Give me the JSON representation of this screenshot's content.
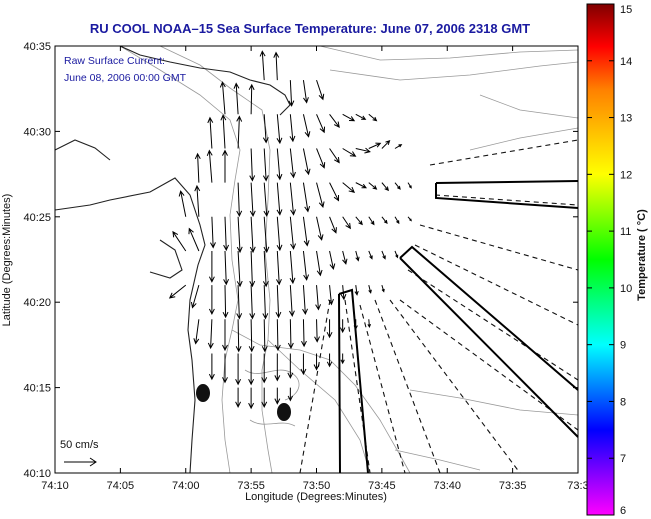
{
  "chart_data": {
    "type": "vector_field",
    "title": "RU COOL  NOAA–15  Sea Surface Temperature:  June 07, 2006 2318 GMT",
    "annotation_lines": [
      "Raw Surface Current:",
      "June 08, 2006 00:00 GMT"
    ],
    "xlabel": "Longitude (Degrees:Minutes)",
    "ylabel": "Latitude (Degrees:Minutes)",
    "xlim": [
      -74.1667,
      -73.5
    ],
    "ylim": [
      40.1667,
      40.5833
    ],
    "x_ticks": [
      "74:10",
      "74:05",
      "74:00",
      "73:55",
      "73:50",
      "73:45",
      "73:40",
      "73:35",
      "73:3"
    ],
    "y_ticks": [
      "40:35",
      "40:30",
      "40:25",
      "40:20",
      "40:15",
      "40:10"
    ],
    "scale_label": "50 cm/s",
    "colorbar": {
      "label": "Temperature ( °C)",
      "min": 6,
      "max": 15,
      "ticks": [
        "15",
        "14",
        "13",
        "12",
        "11",
        "10",
        "9",
        "8",
        "7",
        "6"
      ],
      "colors": [
        "#ff00ff",
        "#8000ff",
        "#0000ff",
        "#0080ff",
        "#00ffff",
        "#00ff80",
        "#00ff00",
        "#80ff00",
        "#ffff00",
        "#ffc000",
        "#ff8000",
        "#ff0000",
        "#800000"
      ]
    },
    "vectors": [
      {
        "lon": -73.9,
        "lat": 40.55,
        "u": -3,
        "v": 45
      },
      {
        "lon": -73.8833,
        "lat": 40.55,
        "u": -2,
        "v": 43
      },
      {
        "lon": -73.8667,
        "lat": 40.55,
        "u": 2,
        "v": -40
      },
      {
        "lon": -73.85,
        "lat": 40.55,
        "u": 5,
        "v": -35
      },
      {
        "lon": -73.8333,
        "lat": 40.55,
        "u": 10,
        "v": -30
      },
      {
        "lon": -73.95,
        "lat": 40.5167,
        "u": -4,
        "v": 50
      },
      {
        "lon": -73.9333,
        "lat": 40.5167,
        "u": -3,
        "v": 48
      },
      {
        "lon": -73.9167,
        "lat": 40.5167,
        "u": 1,
        "v": 46
      },
      {
        "lon": -73.9,
        "lat": 40.5167,
        "u": 3,
        "v": -44
      },
      {
        "lon": -73.8833,
        "lat": 40.5167,
        "u": 4,
        "v": -45
      },
      {
        "lon": -73.8667,
        "lat": 40.5167,
        "u": 4,
        "v": -42
      },
      {
        "lon": -73.85,
        "lat": 40.5167,
        "u": 8,
        "v": -35
      },
      {
        "lon": -73.8333,
        "lat": 40.5167,
        "u": 12,
        "v": -28
      },
      {
        "lon": -73.8167,
        "lat": 40.5167,
        "u": 15,
        "v": -20
      },
      {
        "lon": -73.8,
        "lat": 40.5167,
        "u": 18,
        "v": -10
      },
      {
        "lon": -73.7833,
        "lat": 40.5167,
        "u": 15,
        "v": -8
      },
      {
        "lon": -73.7667,
        "lat": 40.5167,
        "u": 12,
        "v": -10
      },
      {
        "lon": -73.9667,
        "lat": 40.4833,
        "u": -3,
        "v": 48
      },
      {
        "lon": -73.95,
        "lat": 40.4833,
        "u": -3,
        "v": 52
      },
      {
        "lon": -73.9333,
        "lat": 40.4833,
        "u": 2,
        "v": 50
      },
      {
        "lon": -73.9167,
        "lat": 40.4833,
        "u": 2,
        "v": -50
      },
      {
        "lon": -73.9,
        "lat": 40.4833,
        "u": 3,
        "v": -50
      },
      {
        "lon": -73.8833,
        "lat": 40.4833,
        "u": 4,
        "v": -48
      },
      {
        "lon": -73.8667,
        "lat": 40.4833,
        "u": 5,
        "v": -45
      },
      {
        "lon": -73.85,
        "lat": 40.4833,
        "u": 8,
        "v": -40
      },
      {
        "lon": -73.8333,
        "lat": 40.4833,
        "u": 12,
        "v": -30
      },
      {
        "lon": -73.8167,
        "lat": 40.4833,
        "u": 15,
        "v": -22
      },
      {
        "lon": -73.8,
        "lat": 40.4833,
        "u": 20,
        "v": -12
      },
      {
        "lon": -73.7833,
        "lat": 40.4833,
        "u": 22,
        "v": -5
      },
      {
        "lon": -73.7667,
        "lat": 40.4833,
        "u": 18,
        "v": 8
      },
      {
        "lon": -73.75,
        "lat": 40.4833,
        "u": 12,
        "v": 12
      },
      {
        "lon": -73.7333,
        "lat": 40.4833,
        "u": 10,
        "v": 6
      },
      {
        "lon": -73.9833,
        "lat": 40.45,
        "u": -2,
        "v": 45
      },
      {
        "lon": -73.9667,
        "lat": 40.45,
        "u": -4,
        "v": 50
      },
      {
        "lon": -73.95,
        "lat": 40.45,
        "u": 0,
        "v": 50
      },
      {
        "lon": -73.9333,
        "lat": 40.45,
        "u": 2,
        "v": -52
      },
      {
        "lon": -73.9167,
        "lat": 40.45,
        "u": 3,
        "v": -52
      },
      {
        "lon": -73.9,
        "lat": 40.45,
        "u": 4,
        "v": -52
      },
      {
        "lon": -73.8833,
        "lat": 40.45,
        "u": 4,
        "v": -50
      },
      {
        "lon": -73.8667,
        "lat": 40.45,
        "u": 5,
        "v": -50
      },
      {
        "lon": -73.85,
        "lat": 40.45,
        "u": 7,
        "v": -45
      },
      {
        "lon": -73.8333,
        "lat": 40.45,
        "u": 10,
        "v": -38
      },
      {
        "lon": -73.8167,
        "lat": 40.45,
        "u": 14,
        "v": -28
      },
      {
        "lon": -73.8,
        "lat": 40.45,
        "u": 18,
        "v": -15
      },
      {
        "lon": -73.7833,
        "lat": 40.45,
        "u": 16,
        "v": -8
      },
      {
        "lon": -73.7667,
        "lat": 40.45,
        "u": 12,
        "v": -10
      },
      {
        "lon": -73.75,
        "lat": 40.45,
        "u": 10,
        "v": -12
      },
      {
        "lon": -73.7333,
        "lat": 40.45,
        "u": 8,
        "v": -10
      },
      {
        "lon": -73.7167,
        "lat": 40.45,
        "u": 5,
        "v": -8
      },
      {
        "lon": -74.0,
        "lat": 40.4167,
        "u": -8,
        "v": 40
      },
      {
        "lon": -73.9833,
        "lat": 40.4167,
        "u": -3,
        "v": 48
      },
      {
        "lon": -73.9667,
        "lat": 40.4167,
        "u": 2,
        "v": -48
      },
      {
        "lon": -73.95,
        "lat": 40.4167,
        "u": 2,
        "v": -52
      },
      {
        "lon": -73.9333,
        "lat": 40.4167,
        "u": 3,
        "v": -55
      },
      {
        "lon": -73.9167,
        "lat": 40.4167,
        "u": 3,
        "v": -55
      },
      {
        "lon": -73.9,
        "lat": 40.4167,
        "u": 4,
        "v": -55
      },
      {
        "lon": -73.8833,
        "lat": 40.4167,
        "u": 4,
        "v": -52
      },
      {
        "lon": -73.8667,
        "lat": 40.4167,
        "u": 5,
        "v": -50
      },
      {
        "lon": -73.85,
        "lat": 40.4167,
        "u": 6,
        "v": -45
      },
      {
        "lon": -73.8333,
        "lat": 40.4167,
        "u": 8,
        "v": -36
      },
      {
        "lon": -73.8167,
        "lat": 40.4167,
        "u": 10,
        "v": -25
      },
      {
        "lon": -73.8,
        "lat": 40.4167,
        "u": 12,
        "v": -18
      },
      {
        "lon": -73.7833,
        "lat": 40.4167,
        "u": 10,
        "v": -12
      },
      {
        "lon": -73.7667,
        "lat": 40.4167,
        "u": 8,
        "v": -12
      },
      {
        "lon": -73.75,
        "lat": 40.4167,
        "u": 8,
        "v": -10
      },
      {
        "lon": -73.7333,
        "lat": 40.4167,
        "u": 6,
        "v": -10
      },
      {
        "lon": -73.7167,
        "lat": 40.4167,
        "u": 5,
        "v": -6
      },
      {
        "lon": -74.0,
        "lat": 40.3833,
        "u": -20,
        "v": 30
      },
      {
        "lon": -73.9833,
        "lat": 40.3833,
        "u": -15,
        "v": 35
      },
      {
        "lon": -73.9667,
        "lat": 40.3833,
        "u": 0,
        "v": -48
      },
      {
        "lon": -73.95,
        "lat": 40.3833,
        "u": 2,
        "v": -52
      },
      {
        "lon": -73.9333,
        "lat": 40.3833,
        "u": 3,
        "v": -55
      },
      {
        "lon": -73.9167,
        "lat": 40.3833,
        "u": 2,
        "v": -55
      },
      {
        "lon": -73.9,
        "lat": 40.3833,
        "u": 3,
        "v": -55
      },
      {
        "lon": -73.8833,
        "lat": 40.3833,
        "u": 3,
        "v": -52
      },
      {
        "lon": -73.8667,
        "lat": 40.3833,
        "u": 4,
        "v": -50
      },
      {
        "lon": -73.85,
        "lat": 40.3833,
        "u": 5,
        "v": -45
      },
      {
        "lon": -73.8333,
        "lat": 40.3833,
        "u": 6,
        "v": -38
      },
      {
        "lon": -73.8167,
        "lat": 40.3833,
        "u": 6,
        "v": -28
      },
      {
        "lon": -73.8,
        "lat": 40.3833,
        "u": 5,
        "v": -20
      },
      {
        "lon": -73.7833,
        "lat": 40.3833,
        "u": 4,
        "v": -15
      },
      {
        "lon": -73.7667,
        "lat": 40.3833,
        "u": 5,
        "v": -12
      },
      {
        "lon": -73.75,
        "lat": 40.3833,
        "u": 5,
        "v": -12
      },
      {
        "lon": -73.7333,
        "lat": 40.3833,
        "u": 4,
        "v": -10
      },
      {
        "lon": -74.0,
        "lat": 40.35,
        "u": -25,
        "v": -20
      },
      {
        "lon": -73.9833,
        "lat": 40.35,
        "u": -10,
        "v": -35
      },
      {
        "lon": -73.9667,
        "lat": 40.35,
        "u": 0,
        "v": -45
      },
      {
        "lon": -73.95,
        "lat": 40.35,
        "u": 1,
        "v": -50
      },
      {
        "lon": -73.9333,
        "lat": 40.35,
        "u": 2,
        "v": -52
      },
      {
        "lon": -73.9167,
        "lat": 40.35,
        "u": 2,
        "v": -52
      },
      {
        "lon": -73.9,
        "lat": 40.35,
        "u": 2,
        "v": -52
      },
      {
        "lon": -73.8833,
        "lat": 40.35,
        "u": 2,
        "v": -50
      },
      {
        "lon": -73.8667,
        "lat": 40.35,
        "u": 3,
        "v": -48
      },
      {
        "lon": -73.85,
        "lat": 40.35,
        "u": 3,
        "v": -45
      },
      {
        "lon": -73.8333,
        "lat": 40.35,
        "u": 3,
        "v": -38
      },
      {
        "lon": -73.8167,
        "lat": 40.35,
        "u": 3,
        "v": -30
      },
      {
        "lon": -73.8,
        "lat": 40.35,
        "u": 2,
        "v": -22
      },
      {
        "lon": -73.7833,
        "lat": 40.35,
        "u": 2,
        "v": -15
      },
      {
        "lon": -73.7667,
        "lat": 40.35,
        "u": 3,
        "v": -12
      },
      {
        "lon": -73.75,
        "lat": 40.35,
        "u": 3,
        "v": -10
      },
      {
        "lon": -73.9833,
        "lat": 40.3167,
        "u": -5,
        "v": -38
      },
      {
        "lon": -73.9667,
        "lat": 40.3167,
        "u": -2,
        "v": -45
      },
      {
        "lon": -73.95,
        "lat": 40.3167,
        "u": 0,
        "v": -48
      },
      {
        "lon": -73.9333,
        "lat": 40.3167,
        "u": 1,
        "v": -50
      },
      {
        "lon": -73.9167,
        "lat": 40.3167,
        "u": 1,
        "v": -50
      },
      {
        "lon": -73.9,
        "lat": 40.3167,
        "u": 1,
        "v": -50
      },
      {
        "lon": -73.8833,
        "lat": 40.3167,
        "u": 1,
        "v": -48
      },
      {
        "lon": -73.8667,
        "lat": 40.3167,
        "u": 1,
        "v": -45
      },
      {
        "lon": -73.85,
        "lat": 40.3167,
        "u": 1,
        "v": -42
      },
      {
        "lon": -73.8333,
        "lat": 40.3167,
        "u": 1,
        "v": -35
      },
      {
        "lon": -73.8167,
        "lat": 40.3167,
        "u": 0,
        "v": -28
      },
      {
        "lon": -73.8,
        "lat": 40.3167,
        "u": 0,
        "v": -20
      },
      {
        "lon": -73.7833,
        "lat": 40.3167,
        "u": 0,
        "v": -15
      },
      {
        "lon": -73.7667,
        "lat": 40.3167,
        "u": 1,
        "v": -12
      },
      {
        "lon": -73.9667,
        "lat": 40.2833,
        "u": 0,
        "v": -40
      },
      {
        "lon": -73.95,
        "lat": 40.2833,
        "u": 0,
        "v": -45
      },
      {
        "lon": -73.9333,
        "lat": 40.2833,
        "u": 0,
        "v": -48
      },
      {
        "lon": -73.9167,
        "lat": 40.2833,
        "u": 0,
        "v": -48
      },
      {
        "lon": -73.9,
        "lat": 40.2833,
        "u": 0,
        "v": -45
      },
      {
        "lon": -73.8833,
        "lat": 40.2833,
        "u": 0,
        "v": -42
      },
      {
        "lon": -73.8667,
        "lat": 40.2833,
        "u": 0,
        "v": -38
      },
      {
        "lon": -73.85,
        "lat": 40.2833,
        "u": 0,
        "v": -32
      },
      {
        "lon": -73.8333,
        "lat": 40.2833,
        "u": 0,
        "v": -25
      },
      {
        "lon": -73.8167,
        "lat": 40.2833,
        "u": 0,
        "v": -20
      },
      {
        "lon": -73.8,
        "lat": 40.2833,
        "u": 0,
        "v": -15
      },
      {
        "lon": -73.9333,
        "lat": 40.25,
        "u": 0,
        "v": -30
      },
      {
        "lon": -73.9167,
        "lat": 40.25,
        "u": 0,
        "v": -32
      },
      {
        "lon": -73.9,
        "lat": 40.25,
        "u": 0,
        "v": -30
      },
      {
        "lon": -73.8833,
        "lat": 40.25,
        "u": 0,
        "v": -25
      },
      {
        "lon": -73.8667,
        "lat": 40.25,
        "u": 0,
        "v": -20
      }
    ]
  }
}
